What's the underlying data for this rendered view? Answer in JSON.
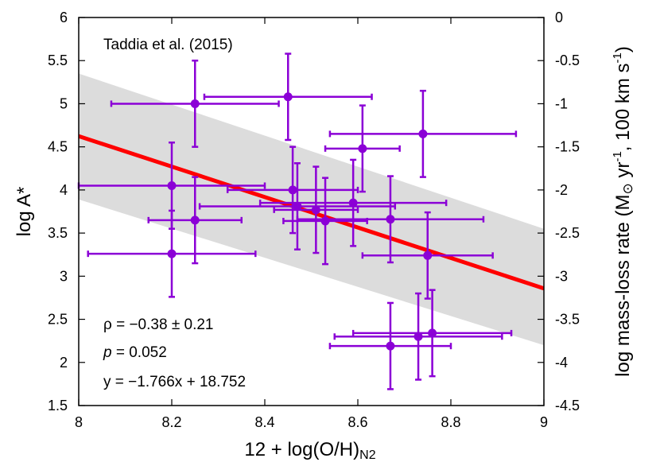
{
  "chart_data": {
    "type": "scatter",
    "title": "Taddia et al. (2015)",
    "xlabel_main": "12 + log(O/H)",
    "xlabel_sub": "N2",
    "ylabel": "log A*",
    "y2label_text": "log mass-loss rate (M",
    "y2label_sun": "⊙",
    "y2label_yr": " yr",
    "y2label_exp1": "-1",
    "y2label_kms": ", 100 km s",
    "y2label_exp2": "-1",
    "y2label_close": ")",
    "xlim": [
      8,
      9
    ],
    "ylim": [
      1.5,
      6
    ],
    "y2lim": [
      -4.5,
      0
    ],
    "x_ticks": [
      "8",
      "8.2",
      "8.4",
      "8.6",
      "8.8",
      "9"
    ],
    "y_ticks": [
      "1.5",
      "2",
      "2.5",
      "3",
      "3.5",
      "4",
      "4.5",
      "5",
      "5.5",
      "6"
    ],
    "y2_ticks": [
      "-4.5",
      "-4",
      "-3.5",
      "-3",
      "-2.5",
      "-2",
      "-1.5",
      "-1",
      "-0.5",
      "0"
    ],
    "points": [
      {
        "x": 8.25,
        "xerr": 0.18,
        "y": 5.0,
        "yerr": 0.5
      },
      {
        "x": 8.45,
        "xerr": 0.18,
        "y": 5.08,
        "yerr": 0.5
      },
      {
        "x": 8.74,
        "xerr": 0.2,
        "y": 4.65,
        "yerr": 0.5
      },
      {
        "x": 8.61,
        "xerr": 0.08,
        "y": 4.48,
        "yerr": 0.5
      },
      {
        "x": 8.2,
        "xerr": 0.2,
        "y": 4.05,
        "yerr": 0.5
      },
      {
        "x": 8.46,
        "xerr": 0.14,
        "y": 4.0,
        "yerr": 0.5
      },
      {
        "x": 8.59,
        "xerr": 0.2,
        "y": 3.85,
        "yerr": 0.5
      },
      {
        "x": 8.47,
        "xerr": 0.21,
        "y": 3.81,
        "yerr": 0.5
      },
      {
        "x": 8.51,
        "xerr": 0.09,
        "y": 3.77,
        "yerr": 0.5
      },
      {
        "x": 8.25,
        "xerr": 0.1,
        "y": 3.65,
        "yerr": 0.5
      },
      {
        "x": 8.53,
        "xerr": 0.09,
        "y": 3.64,
        "yerr": 0.5
      },
      {
        "x": 8.67,
        "xerr": 0.2,
        "y": 3.66,
        "yerr": 0.5
      },
      {
        "x": 8.2,
        "xerr": 0.18,
        "y": 3.26,
        "yerr": 0.5
      },
      {
        "x": 8.75,
        "xerr": 0.14,
        "y": 3.24,
        "yerr": 0.5
      },
      {
        "x": 8.76,
        "xerr": 0.17,
        "y": 2.34,
        "yerr": 0.5
      },
      {
        "x": 8.73,
        "xerr": 0.18,
        "y": 2.3,
        "yerr": 0.5
      },
      {
        "x": 8.67,
        "xerr": 0.13,
        "y": 2.19,
        "yerr": 0.5
      }
    ],
    "fit": {
      "slope": -1.766,
      "intercept": 18.752
    },
    "confidence_band": {
      "at_x8": [
        3.89,
        5.35
      ],
      "at_x9": [
        2.2,
        3.55
      ]
    },
    "annotations": {
      "rho": "ρ = −0.38 ± 0.21",
      "p_symbol": "p",
      "p_value": " = 0.052",
      "equation": "y = −1.766x + 18.752"
    },
    "colors": {
      "points": "#8b00d6",
      "fit_line": "#ff0000",
      "band": "#dcdcdc",
      "equation_text": "#ff0000"
    }
  }
}
